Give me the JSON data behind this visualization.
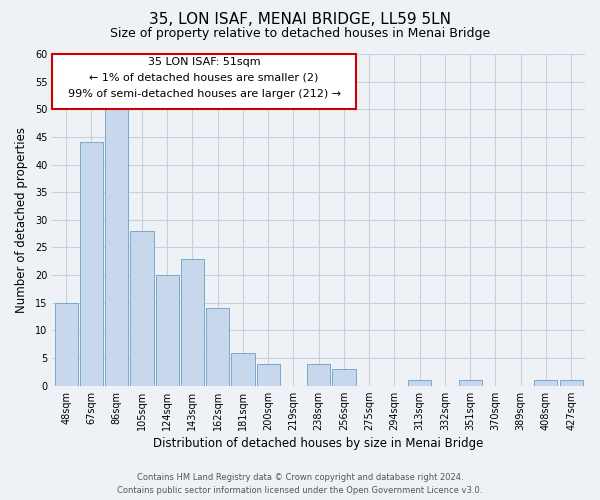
{
  "title": "35, LON ISAF, MENAI BRIDGE, LL59 5LN",
  "subtitle": "Size of property relative to detached houses in Menai Bridge",
  "xlabel": "Distribution of detached houses by size in Menai Bridge",
  "ylabel": "Number of detached properties",
  "bar_color": "#c8d8ec",
  "bar_edge_color": "#7aa8cc",
  "bins": [
    "48sqm",
    "67sqm",
    "86sqm",
    "105sqm",
    "124sqm",
    "143sqm",
    "162sqm",
    "181sqm",
    "200sqm",
    "219sqm",
    "238sqm",
    "256sqm",
    "275sqm",
    "294sqm",
    "313sqm",
    "332sqm",
    "351sqm",
    "370sqm",
    "389sqm",
    "408sqm",
    "427sqm"
  ],
  "values": [
    15,
    44,
    50,
    28,
    20,
    23,
    14,
    6,
    4,
    0,
    4,
    3,
    0,
    0,
    1,
    0,
    1,
    0,
    0,
    1,
    1
  ],
  "ylim": [
    0,
    60
  ],
  "yticks": [
    0,
    5,
    10,
    15,
    20,
    25,
    30,
    35,
    40,
    45,
    50,
    55,
    60
  ],
  "annotation_title": "35 LON ISAF: 51sqm",
  "annotation_line1": "← 1% of detached houses are smaller (2)",
  "annotation_line2": "99% of semi-detached houses are larger (212) →",
  "footer_line1": "Contains HM Land Registry data © Crown copyright and database right 2024.",
  "footer_line2": "Contains public sector information licensed under the Open Government Licence v3.0.",
  "background_color": "#eef2f7",
  "plot_bg_color": "#eef2f7",
  "grid_color": "#c8d0dc",
  "title_fontsize": 11,
  "subtitle_fontsize": 9,
  "tick_fontsize": 7,
  "label_fontsize": 8.5,
  "annotation_fontsize": 8,
  "footer_fontsize": 6
}
